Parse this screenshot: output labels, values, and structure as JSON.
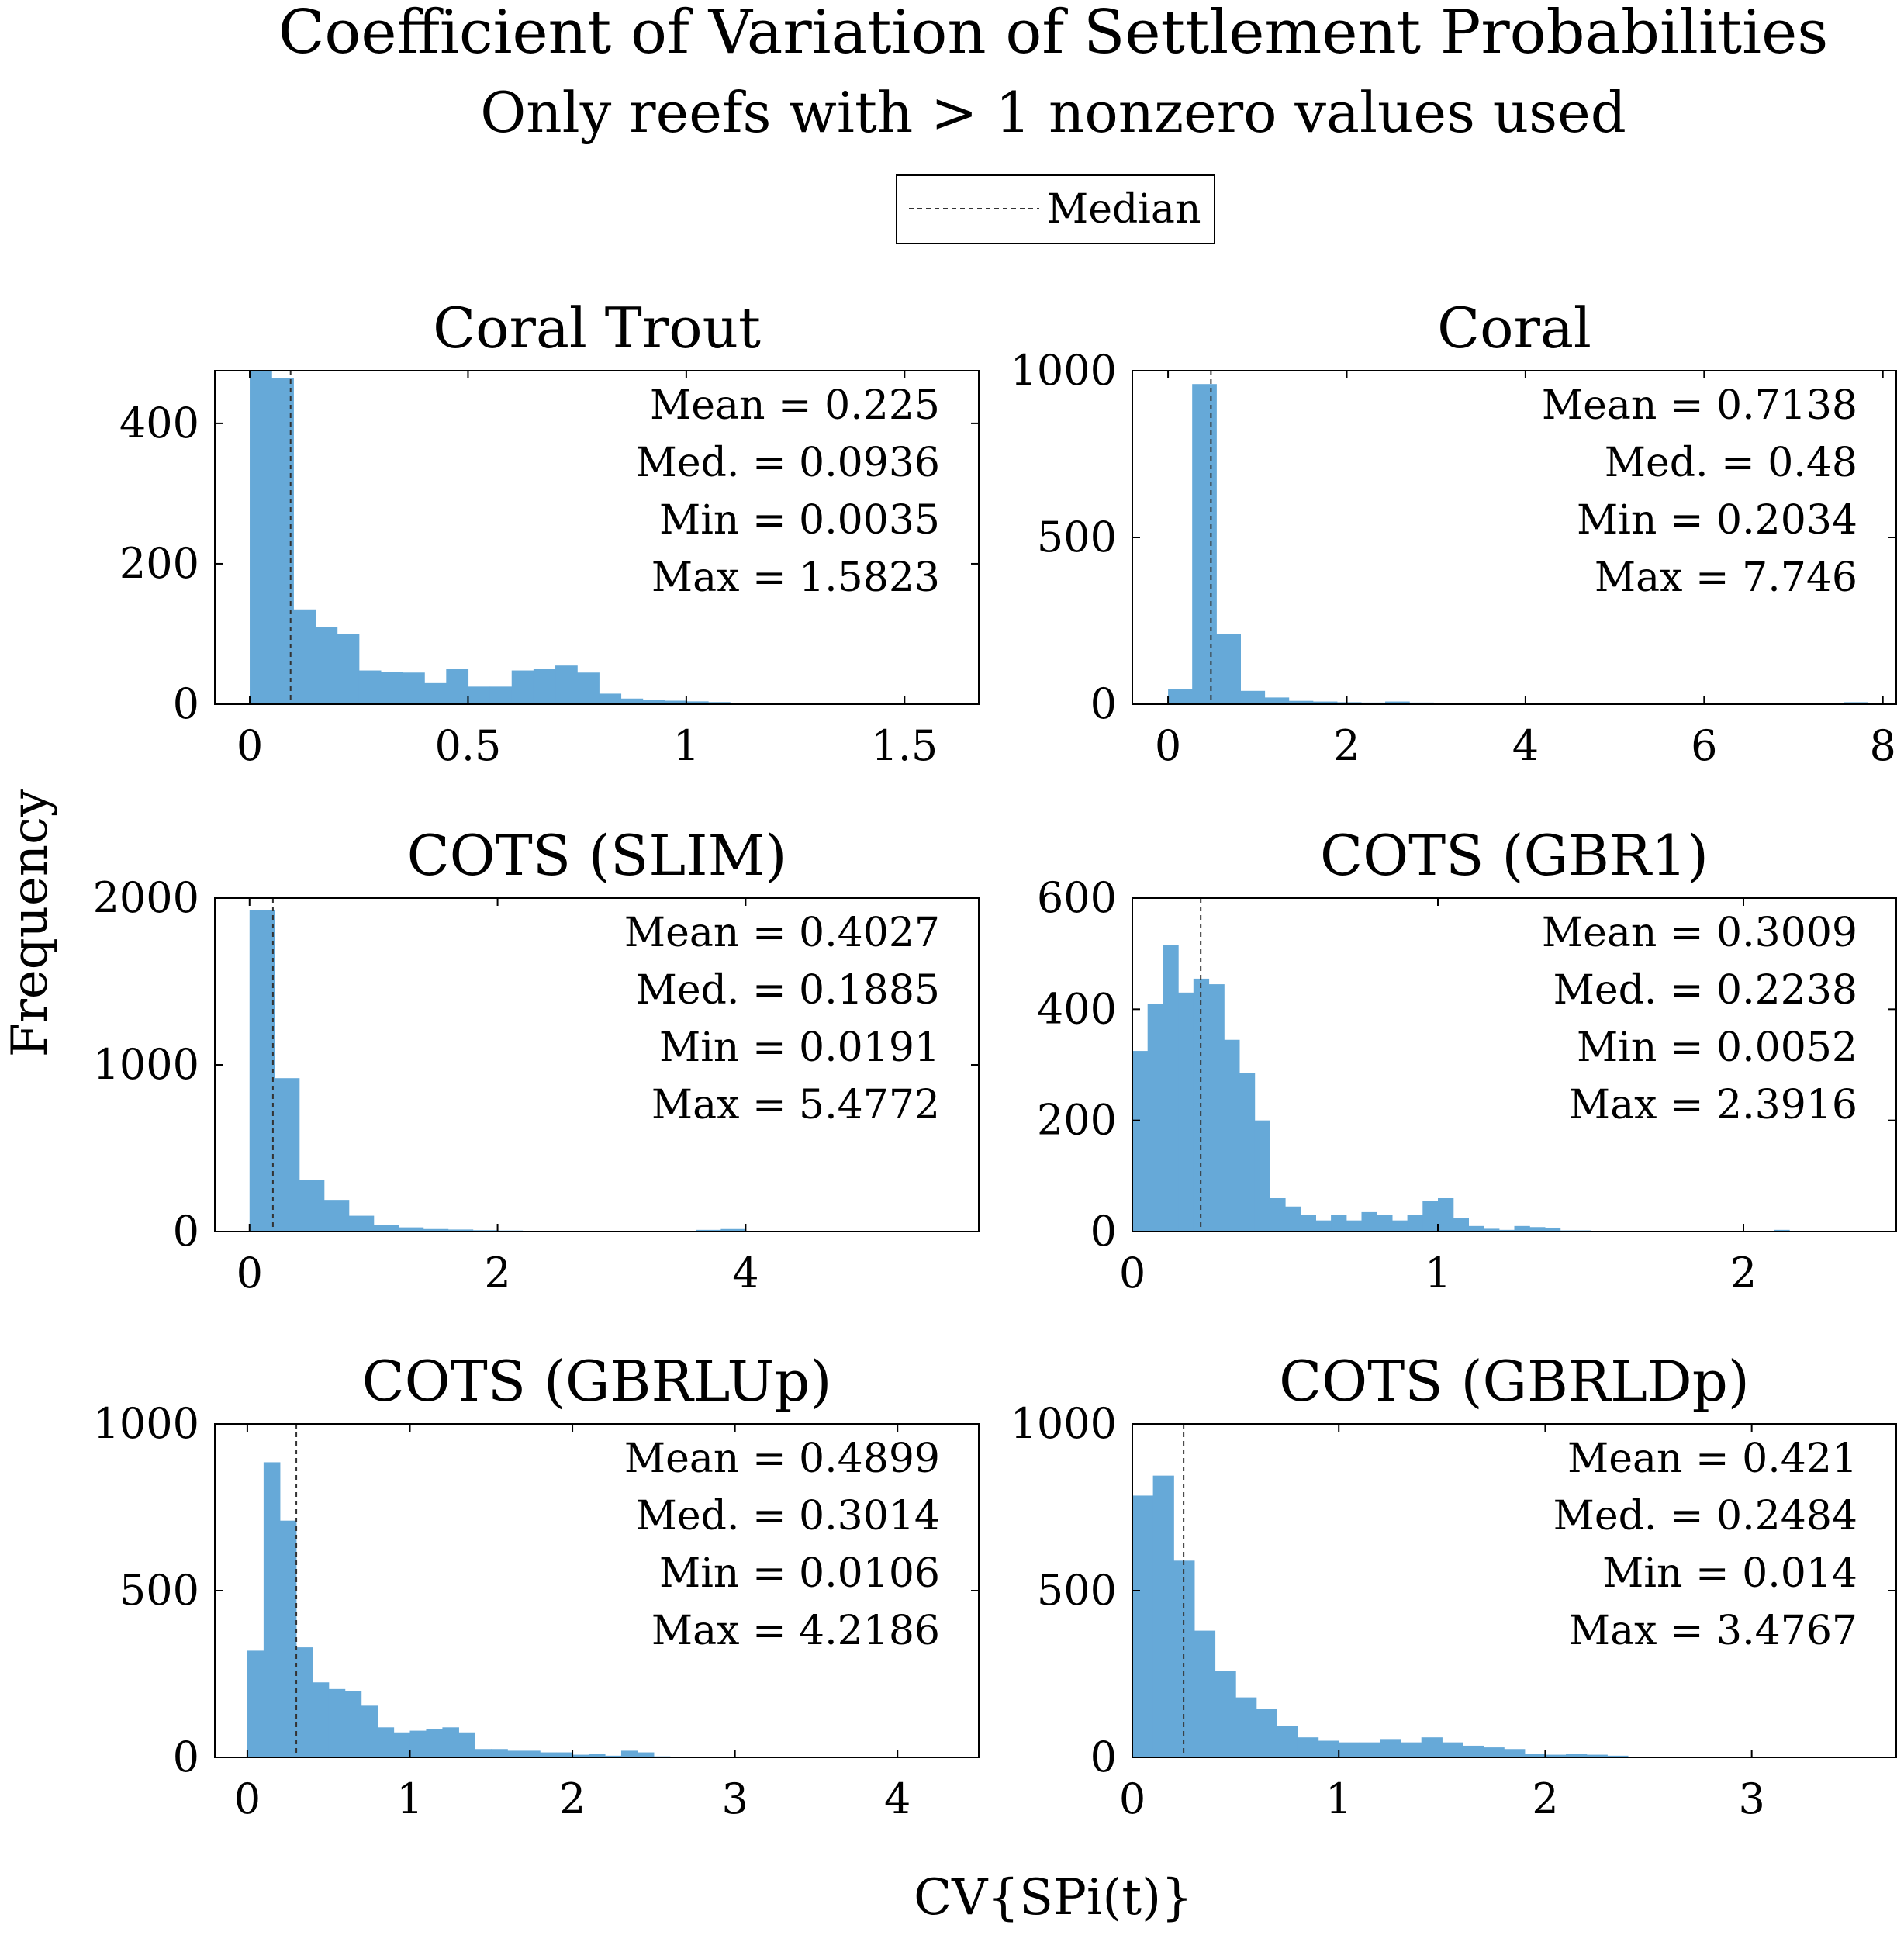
{
  "title": "Coefficient of Variation of Settlement Probabilities",
  "subtitle": "Only reefs with > 1 nonzero values used",
  "legend": {
    "median_label": "Median"
  },
  "xlabel": "CV{SPi(t)}",
  "ylabel": "Frequency",
  "colors": {
    "bar": "#66a9d8",
    "median_line": "#333333",
    "axis": "#000000"
  },
  "chart_data": [
    {
      "type": "bar",
      "title": "Coral Trout",
      "bin_start": 0,
      "bin_width": 0.05,
      "values": [
        475,
        465,
        135,
        110,
        100,
        48,
        46,
        45,
        30,
        50,
        25,
        25,
        48,
        50,
        55,
        45,
        15,
        8,
        6,
        5,
        4,
        3,
        2,
        2,
        1,
        1,
        1,
        0,
        0,
        1,
        0,
        0
      ],
      "median": 0.0936,
      "xlim": [
        -0.08,
        1.67
      ],
      "ylim": [
        0,
        475
      ],
      "xticks": [
        0,
        0.5,
        1,
        1.5
      ],
      "xtick_labels": [
        "0",
        "0.5",
        "1",
        "1.5"
      ],
      "yticks": [
        0,
        200,
        400
      ],
      "ytick_labels": [
        "0",
        "200",
        "400"
      ],
      "stats": {
        "mean": "Mean = 0.225",
        "median": "Med. = 0.0936",
        "min": "Min = 0.0035",
        "max": "Max = 1.5823"
      }
    },
    {
      "type": "bar",
      "title": "Coral",
      "bin_start": 0,
      "bin_width": 0.27,
      "values": [
        45,
        960,
        210,
        40,
        20,
        10,
        8,
        6,
        5,
        8,
        5,
        3,
        2,
        2,
        1,
        1,
        1,
        1,
        1,
        1,
        1,
        1,
        1,
        1,
        1,
        1,
        1,
        1,
        6
      ],
      "median": 0.48,
      "xlim": [
        -0.4,
        8.15
      ],
      "ylim": [
        0,
        1000
      ],
      "xticks": [
        0,
        2,
        4,
        6,
        8
      ],
      "xtick_labels": [
        "0",
        "2",
        "4",
        "6",
        "8"
      ],
      "yticks": [
        0,
        500,
        1000
      ],
      "ytick_labels": [
        "0",
        "500",
        "1000"
      ],
      "stats": {
        "mean": "Mean = 0.7138",
        "median": "Med. = 0.48",
        "min": "Min = 0.2034",
        "max": "Max = 7.746"
      }
    },
    {
      "type": "bar",
      "title": "COTS (SLIM)",
      "bin_start": 0,
      "bin_width": 0.2,
      "values": [
        1930,
        920,
        310,
        190,
        95,
        40,
        25,
        15,
        12,
        8,
        6,
        4,
        3,
        2,
        2,
        2,
        2,
        2,
        10,
        15
      ],
      "median": 0.1885,
      "xlim": [
        -0.28,
        5.88
      ],
      "ylim": [
        0,
        2000
      ],
      "xticks": [
        0,
        2,
        4
      ],
      "xtick_labels": [
        "0",
        "2",
        "4"
      ],
      "yticks": [
        0,
        1000,
        2000
      ],
      "ytick_labels": [
        "0",
        "1000",
        "2000"
      ],
      "stats": {
        "mean": "Mean = 0.4027",
        "median": "Med. = 0.1885",
        "min": "Min = 0.0191",
        "max": "Max = 5.4772"
      }
    },
    {
      "type": "bar",
      "title": "COTS (GBR1)",
      "bin_start": 0,
      "bin_width": 0.05,
      "values": [
        325,
        410,
        515,
        430,
        455,
        445,
        345,
        285,
        200,
        60,
        45,
        30,
        20,
        30,
        20,
        35,
        30,
        20,
        30,
        55,
        60,
        25,
        10,
        5,
        3,
        10,
        8,
        7,
        2,
        2,
        1,
        1,
        1,
        1,
        1,
        1,
        1,
        1,
        1,
        1,
        1,
        1,
        3
      ],
      "median": 0.2238,
      "xlim": [
        0,
        2.5
      ],
      "ylim": [
        0,
        600
      ],
      "xticks": [
        0,
        1,
        2
      ],
      "xtick_labels": [
        "0",
        "1",
        "2"
      ],
      "yticks": [
        0,
        200,
        400,
        600
      ],
      "ytick_labels": [
        "0",
        "200",
        "400",
        "600"
      ],
      "stats": {
        "mean": "Mean = 0.3009",
        "median": "Med. = 0.2238",
        "min": "Min = 0.0052",
        "max": "Max = 2.3916"
      }
    },
    {
      "type": "bar",
      "title": "COTS (GBRLUp)",
      "bin_start": 0,
      "bin_width": 0.1,
      "values": [
        320,
        885,
        710,
        330,
        225,
        205,
        200,
        155,
        90,
        75,
        80,
        85,
        90,
        75,
        25,
        25,
        20,
        20,
        15,
        15,
        8,
        10,
        5,
        20,
        15,
        3
      ],
      "median": 0.3014,
      "xlim": [
        -0.2,
        4.5
      ],
      "ylim": [
        0,
        1000
      ],
      "xticks": [
        0,
        1,
        2,
        3,
        4
      ],
      "xtick_labels": [
        "0",
        "1",
        "2",
        "3",
        "4"
      ],
      "yticks": [
        0,
        500,
        1000
      ],
      "ytick_labels": [
        "0",
        "500",
        "1000"
      ],
      "stats": {
        "mean": "Mean = 0.4899",
        "median": "Med. = 0.3014",
        "min": "Min = 0.0106",
        "max": "Max = 4.2186"
      }
    },
    {
      "type": "bar",
      "title": "COTS (GBRLDp)",
      "bin_start": 0,
      "bin_width": 0.1,
      "values": [
        785,
        845,
        590,
        380,
        260,
        180,
        145,
        95,
        60,
        50,
        45,
        45,
        55,
        45,
        60,
        45,
        35,
        30,
        25,
        10,
        8,
        10,
        8,
        5
      ],
      "median": 0.2484,
      "xlim": [
        0,
        3.7
      ],
      "ylim": [
        0,
        1000
      ],
      "xticks": [
        0,
        1,
        2,
        3
      ],
      "xtick_labels": [
        "0",
        "1",
        "2",
        "3"
      ],
      "yticks": [
        0,
        500,
        1000
      ],
      "ytick_labels": [
        "0",
        "500",
        "1000"
      ],
      "stats": {
        "mean": "Mean = 0.421",
        "median": "Med. = 0.2484",
        "min": "Min = 0.014",
        "max": "Max = 3.4767"
      }
    }
  ]
}
